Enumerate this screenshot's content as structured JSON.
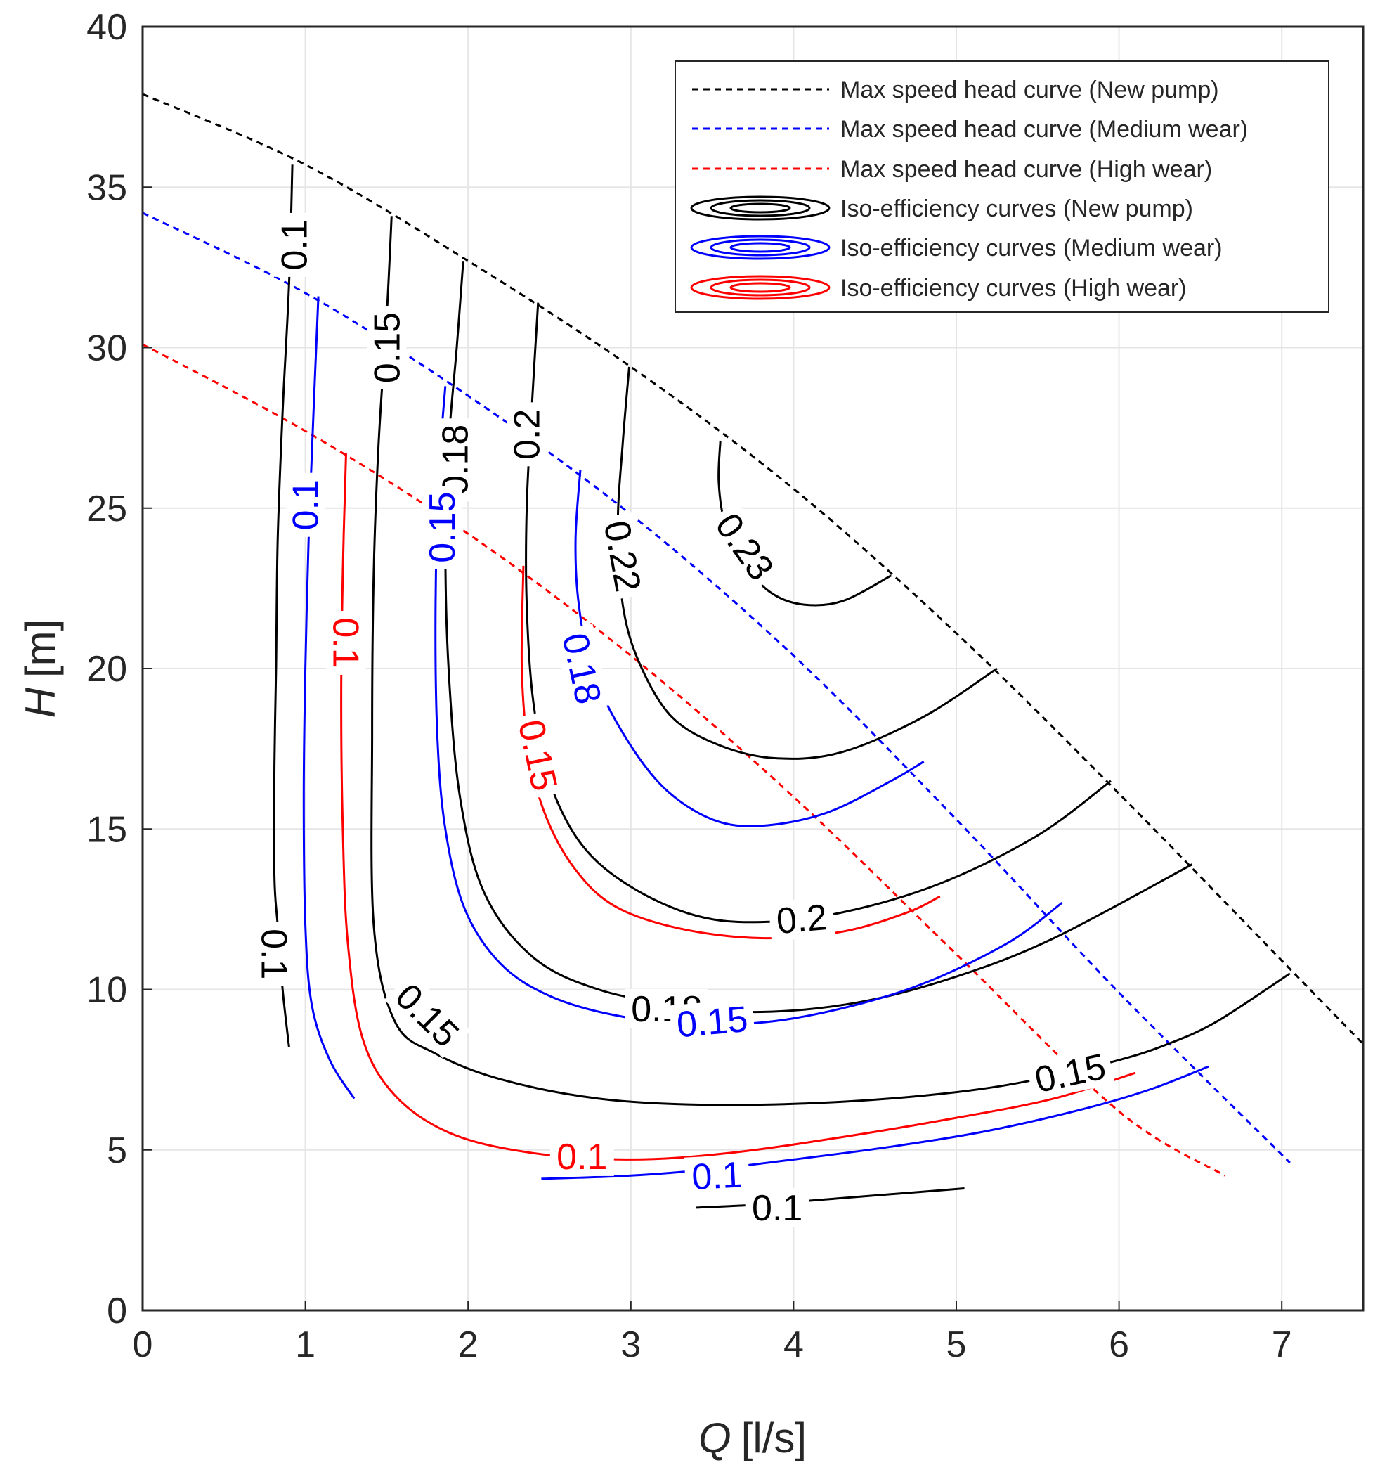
{
  "chart_data": {
    "type": "line",
    "title": "",
    "xlabel": {
      "symbol": "Q",
      "unit": "[l/s]"
    },
    "ylabel": {
      "symbol": "H",
      "unit": "[m]"
    },
    "xlim": [
      0,
      7.5
    ],
    "ylim": [
      0,
      40
    ],
    "xticks": [
      "0",
      "1",
      "2",
      "3",
      "4",
      "5",
      "6",
      "7"
    ],
    "yticks": [
      "0",
      "5",
      "10",
      "15",
      "20",
      "25",
      "30",
      "35",
      "40"
    ],
    "grid": true,
    "legend": {
      "position": "top-right",
      "entries": [
        "Max speed head curve (New pump)",
        "Max speed head curve (Medium wear)",
        "Max speed head curve (High wear)",
        "Iso-efficiency curves (New pump)",
        "Iso-efficiency curves (Medium wear)",
        "Iso-efficiency curves (High wear)"
      ]
    },
    "colors": {
      "new": "#000000",
      "medium": "#0000ff",
      "high": "#ff0000",
      "grid": "#e5e5e5",
      "axis": "#262626"
    },
    "head_curves": [
      {
        "group": "new",
        "x": [
          0,
          1,
          2,
          3,
          4,
          5,
          6,
          7,
          7.5
        ],
        "y": [
          37.9,
          35.7,
          32.7,
          29.4,
          25.6,
          21.1,
          16.1,
          10.9,
          8.3
        ]
      },
      {
        "group": "medium",
        "x": [
          0,
          1,
          2,
          3,
          4,
          5,
          6,
          7.05
        ],
        "y": [
          34.2,
          31.7,
          28.5,
          24.8,
          20.4,
          15.3,
          9.9,
          4.6
        ]
      },
      {
        "group": "high",
        "x": [
          0,
          1,
          2,
          3,
          4,
          5,
          6,
          6.65
        ],
        "y": [
          30.1,
          27.4,
          24.2,
          20.4,
          16.0,
          11.1,
          6.2,
          4.2
        ]
      }
    ],
    "iso_curves": [
      {
        "group": "new",
        "x": [
          0.92,
          0.9,
          0.86,
          0.83,
          0.82,
          0.81,
          0.81,
          0.83,
          0.86,
          0.9
        ],
        "y": [
          35.7,
          32,
          28,
          24,
          20,
          17,
          13.5,
          12,
          10,
          8.2
        ]
      },
      {
        "group": "new",
        "x": [
          1.53,
          1.5,
          1.45,
          1.42,
          1.41,
          1.42,
          1.55,
          1.8,
          2.2,
          2.8,
          3.5,
          4.3,
          5,
          5.5,
          6,
          6.3,
          6.6,
          7.05
        ],
        "y": [
          34.1,
          31,
          27,
          23,
          18,
          12,
          9,
          8.0,
          7.2,
          6.6,
          6.4,
          6.5,
          6.8,
          7.2,
          7.8,
          8.3,
          9.0,
          10.5
        ]
      },
      {
        "group": "new",
        "x": [
          1.97,
          1.93,
          1.88,
          1.86,
          1.88,
          1.95,
          2.1,
          2.4,
          2.8,
          3.3,
          3.8,
          4.4,
          5,
          5.6,
          6.45
        ],
        "y": [
          32.7,
          30,
          27,
          24,
          20,
          16,
          13,
          11,
          10,
          9.5,
          9.3,
          9.6,
          10.4,
          11.6,
          13.9
        ]
      },
      {
        "group": "new",
        "x": [
          2.43,
          2.39,
          2.36,
          2.36,
          2.4,
          2.5,
          2.7,
          3.0,
          3.4,
          3.8,
          4.3,
          4.9,
          5.5,
          5.95
        ],
        "y": [
          31.4,
          28,
          25,
          22,
          19,
          16.5,
          14.5,
          13.2,
          12.3,
          12.1,
          12.4,
          13.3,
          14.8,
          16.5
        ]
      },
      {
        "group": "new",
        "x": [
          2.99,
          2.95,
          2.92,
          2.95,
          3.05,
          3.25,
          3.55,
          3.9,
          4.3,
          4.8,
          5.25
        ],
        "y": [
          29.4,
          27,
          24.5,
          22,
          20.2,
          18.5,
          17.6,
          17.2,
          17.4,
          18.5,
          20.0
        ]
      },
      {
        "group": "new",
        "x": [
          3.55,
          3.54,
          3.58,
          3.7,
          3.85,
          4.05,
          4.3,
          4.6
        ],
        "y": [
          27.1,
          25.8,
          24.5,
          23.3,
          22.4,
          22.0,
          22.1,
          22.9
        ]
      },
      {
        "group": "new",
        "x": [
          3.4,
          3.8,
          4.3,
          4.8,
          5.05
        ],
        "y": [
          3.2,
          3.3,
          3.5,
          3.7,
          3.8
        ]
      },
      {
        "group": "medium",
        "x": [
          1.08,
          1.05,
          1.02,
          1.0,
          0.99,
          1.0,
          1.04,
          1.15,
          1.3
        ],
        "y": [
          31.6,
          28,
          24,
          20,
          16,
          12,
          9.5,
          7.8,
          6.6
        ]
      },
      {
        "group": "medium",
        "x": [
          1.86,
          1.82,
          1.8,
          1.81,
          1.86,
          1.98,
          2.2,
          2.5,
          2.9,
          3.4,
          4.0,
          4.7,
          5.3,
          5.65
        ],
        "y": [
          28.8,
          26,
          22,
          18,
          15,
          12.5,
          10.8,
          9.8,
          9.2,
          8.9,
          9.1,
          10.0,
          11.4,
          12.7
        ]
      },
      {
        "group": "medium",
        "x": [
          2.69,
          2.66,
          2.68,
          2.76,
          2.95,
          3.2,
          3.5,
          3.8,
          4.2,
          4.6,
          4.8
        ],
        "y": [
          26.2,
          24,
          22,
          20,
          18,
          16.3,
          15.3,
          15.1,
          15.5,
          16.5,
          17.1
        ]
      },
      {
        "group": "medium",
        "x": [
          2.45,
          3.0,
          3.5,
          4.0,
          4.6,
          5.2,
          5.8,
          6.2,
          6.55
        ],
        "y": [
          4.1,
          4.2,
          4.4,
          4.7,
          5.1,
          5.6,
          6.3,
          6.9,
          7.6
        ]
      },
      {
        "group": "high",
        "x": [
          1.25,
          1.23,
          1.22,
          1.23,
          1.26,
          1.35,
          1.55,
          1.9,
          2.4,
          3.0,
          3.6,
          4.3,
          5.0,
          5.6,
          6.1
        ],
        "y": [
          26.7,
          23,
          19,
          15,
          11.5,
          8.5,
          6.7,
          5.5,
          4.9,
          4.7,
          4.9,
          5.4,
          6.0,
          6.6,
          7.4
        ]
      },
      {
        "group": "high",
        "x": [
          2.34,
          2.33,
          2.37,
          2.47,
          2.65,
          2.9,
          3.3,
          3.8,
          4.3,
          4.7,
          4.9
        ],
        "y": [
          23.2,
          20,
          17.5,
          15.5,
          13.8,
          12.6,
          11.9,
          11.6,
          11.8,
          12.4,
          12.9
        ]
      }
    ],
    "contour_labels": [
      {
        "text": "0.1",
        "group": "new",
        "x": 0.93,
        "y": 33.2,
        "rotate": -90
      },
      {
        "text": "0.15",
        "group": "new",
        "x": 1.5,
        "y": 30.0,
        "rotate": -90
      },
      {
        "text": "0.18",
        "group": "new",
        "x": 1.92,
        "y": 26.5,
        "rotate": -90
      },
      {
        "text": "0.2",
        "group": "new",
        "x": 2.36,
        "y": 27.3,
        "rotate": -90
      },
      {
        "text": "0.22",
        "group": "new",
        "x": 2.95,
        "y": 23.5,
        "rotate": 80
      },
      {
        "text": "0.23",
        "group": "new",
        "x": 3.7,
        "y": 23.8,
        "rotate": 55
      },
      {
        "text": "0.1",
        "group": "new",
        "x": 0.81,
        "y": 11.1,
        "rotate": 90
      },
      {
        "text": "0.15",
        "group": "new",
        "x": 1.75,
        "y": 9.2,
        "rotate": 45
      },
      {
        "text": "0.2",
        "group": "new",
        "x": 4.05,
        "y": 12.2,
        "rotate": -5
      },
      {
        "text": "0.18",
        "group": "new",
        "x": 3.22,
        "y": 9.4,
        "rotate": 0
      },
      {
        "text": "0.15",
        "group": "new",
        "x": 5.7,
        "y": 7.4,
        "rotate": -12
      },
      {
        "text": "0.1",
        "group": "new",
        "x": 3.9,
        "y": 3.2,
        "rotate": 0
      },
      {
        "text": "0.1",
        "group": "medium",
        "x": 1.0,
        "y": 25.1,
        "rotate": -90
      },
      {
        "text": "0.15",
        "group": "medium",
        "x": 1.84,
        "y": 24.4,
        "rotate": -90
      },
      {
        "text": "0.18",
        "group": "medium",
        "x": 2.7,
        "y": 20.0,
        "rotate": 78
      },
      {
        "text": "0.15",
        "group": "medium",
        "x": 3.5,
        "y": 9.0,
        "rotate": -5
      },
      {
        "text": "0.1",
        "group": "medium",
        "x": 3.53,
        "y": 4.2,
        "rotate": -3
      },
      {
        "text": "0.1",
        "group": "high",
        "x": 1.25,
        "y": 20.8,
        "rotate": 90
      },
      {
        "text": "0.15",
        "group": "high",
        "x": 2.43,
        "y": 17.3,
        "rotate": 78
      },
      {
        "text": "0.1",
        "group": "high",
        "x": 2.7,
        "y": 4.8,
        "rotate": 0
      }
    ]
  }
}
